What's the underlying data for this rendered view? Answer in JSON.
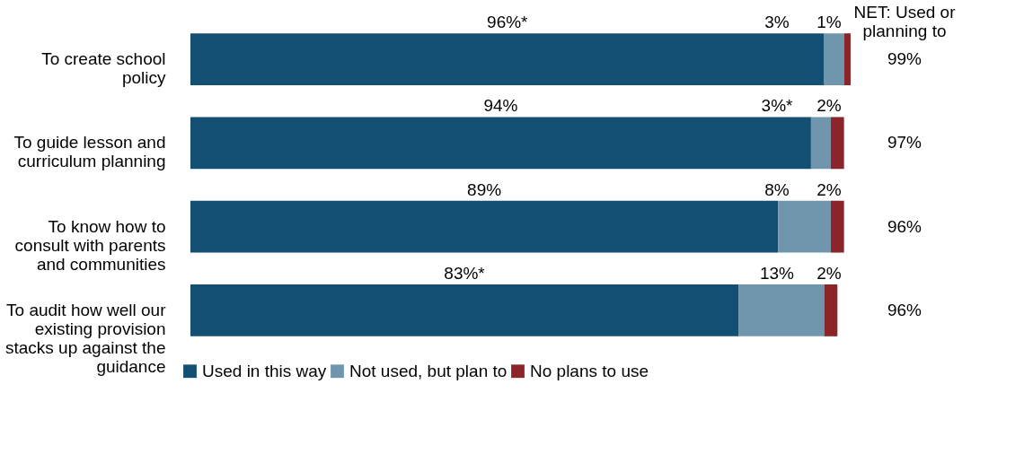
{
  "chart_data": {
    "type": "bar",
    "orientation": "horizontal",
    "stacked": true,
    "categories": [
      "To create school policy",
      "To guide lesson and curriculum planning",
      "To know how to consult with parents and communities",
      "To audit how well our existing provision stacks up against the guidance"
    ],
    "series": [
      {
        "name": "Used in this way",
        "color": "#134f73",
        "values": [
          96,
          94,
          89,
          83
        ],
        "value_labels": [
          "96%*",
          "94%",
          "89%",
          "83%*"
        ]
      },
      {
        "name": "Not used, but plan to",
        "color": "#7096ad",
        "values": [
          3,
          3,
          8,
          13
        ],
        "value_labels": [
          "3%",
          "3%*",
          "8%",
          "13%"
        ]
      },
      {
        "name": "No plans to use",
        "color": "#8b2529",
        "values": [
          1,
          2,
          2,
          2
        ],
        "value_labels": [
          "1%",
          "2%",
          "2%",
          "2%"
        ]
      }
    ],
    "annotations": [
      "NET: Used or planning to",
      "99%",
      "97%",
      "96%",
      "96%"
    ],
    "legend": "bottom"
  }
}
